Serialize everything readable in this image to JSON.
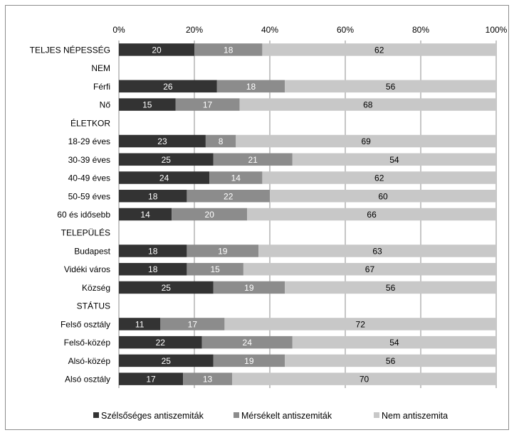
{
  "chart_data": {
    "type": "bar",
    "orientation": "horizontal",
    "stacked": "percent",
    "xlim": [
      0,
      100
    ],
    "x_ticks": [
      "0%",
      "20%",
      "40%",
      "60%",
      "80%",
      "100%"
    ],
    "grid": "vertical",
    "legend_position": "bottom",
    "categories": [
      "TELJES NÉPESSÉG",
      "NEM",
      "Férfi",
      "Nő",
      "ÉLETKOR",
      "18-29 éves",
      "30-39 éves",
      "40-49 éves",
      "50-59 éves",
      "60 és idősebb",
      "TELEPÜLÉS",
      "Budapest",
      "Vidéki város",
      "Község",
      "STÁTUS",
      "Felső osztály",
      "Felső-közép",
      "Alsó-közép",
      "Alsó osztály"
    ],
    "series": [
      {
        "name": "Szélsőséges antiszemiták",
        "color": "#333333",
        "label_color": "#ffffff",
        "values": [
          20,
          null,
          26,
          15,
          null,
          23,
          25,
          24,
          18,
          14,
          null,
          18,
          18,
          25,
          null,
          11,
          22,
          25,
          17
        ]
      },
      {
        "name": "Mérsékelt antiszemiták",
        "color": "#8c8c8c",
        "label_color": "#ffffff",
        "values": [
          18,
          null,
          18,
          17,
          null,
          8,
          21,
          14,
          22,
          20,
          null,
          19,
          15,
          19,
          null,
          17,
          24,
          19,
          13
        ]
      },
      {
        "name": "Nem antiszemita",
        "color": "#c8c8c8",
        "label_color": "#000000",
        "values": [
          62,
          null,
          56,
          68,
          null,
          69,
          54,
          62,
          60,
          66,
          null,
          63,
          67,
          56,
          null,
          72,
          54,
          56,
          70
        ]
      }
    ]
  }
}
